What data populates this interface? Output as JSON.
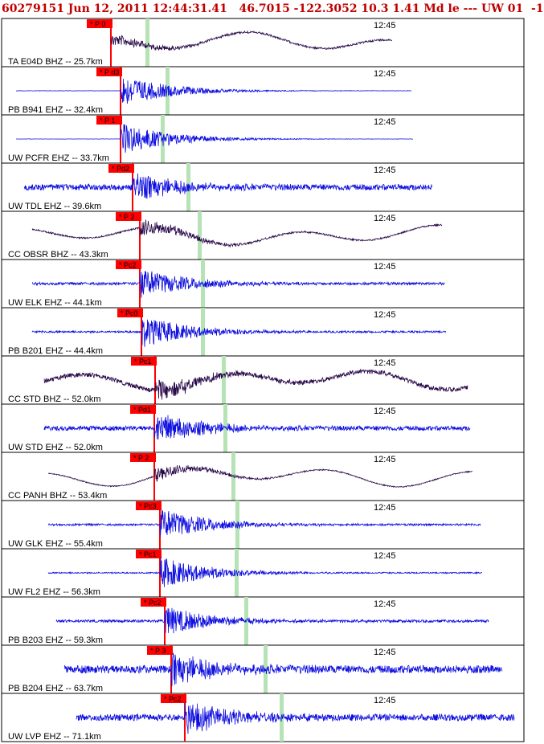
{
  "header": {
    "text": "60279151 Jun 12, 2011 12:44:31.41   46.7015 -122.3052 10.3 1.41 Md le --- UW 01  -1"
  },
  "colors": {
    "trace_blue": "#1010e0",
    "trace_purple": "#2a0a4a",
    "pick_red": "#ff0000",
    "phase_green": "#b6e3b6",
    "frame": "#000000"
  },
  "chart_data": {
    "type": "seismogram",
    "title": "60279151 Jun 12, 2011 12:44:31.41   46.7015 -122.3052 10.3 1.41 Md le --- UW 01  -1",
    "time_tick_label": "12:45",
    "series": [
      {
        "name": "TA E04D BHZ -- 25.7km",
        "pick": "P 0",
        "distance_km": 25.7,
        "color": "purple",
        "noise": 0.15,
        "event": 0.35,
        "long_period": true
      },
      {
        "name": "PB B941 EHZ -- 32.4km",
        "pick": "P d3",
        "distance_km": 32.4,
        "color": "blue",
        "noise": 0.03,
        "event": 0.9,
        "long_period": false
      },
      {
        "name": "UW PCFR EHZ -- 33.7km",
        "pick": "P 1",
        "distance_km": 33.7,
        "color": "blue",
        "noise": 0.02,
        "event": 0.95,
        "long_period": false
      },
      {
        "name": "UW TDL EHZ -- 39.6km",
        "pick": "Pd2",
        "distance_km": 39.6,
        "color": "blue",
        "noise": 0.45,
        "event": 0.8,
        "long_period": false
      },
      {
        "name": "CC OBSR BHZ -- 43.3km",
        "pick": "P 2",
        "distance_km": 43.3,
        "color": "purple",
        "noise": 0.12,
        "event": 0.5,
        "long_period": true
      },
      {
        "name": "UW ELK EHZ -- 44.1km",
        "pick": "Pc2",
        "distance_km": 44.1,
        "color": "blue",
        "noise": 0.2,
        "event": 0.85,
        "long_period": false
      },
      {
        "name": "PB B201 EHZ -- 44.4km",
        "pick": "Pc0",
        "distance_km": 44.4,
        "color": "blue",
        "noise": 0.15,
        "event": 0.9,
        "long_period": false
      },
      {
        "name": "CC STD BHZ -- 52.0km",
        "pick": "Pc1",
        "distance_km": 52.0,
        "color": "purple",
        "noise": 0.35,
        "event": 0.6,
        "long_period": true
      },
      {
        "name": "UW STD EHZ -- 52.0km",
        "pick": "Pd1",
        "distance_km": 52.0,
        "color": "blue",
        "noise": 0.35,
        "event": 0.9,
        "long_period": false
      },
      {
        "name": "CC PANH BHZ -- 53.4km",
        "pick": "P 2",
        "distance_km": 53.4,
        "color": "purple",
        "noise": 0.08,
        "event": 0.4,
        "long_period": true
      },
      {
        "name": "UW GLK EHZ -- 55.4km",
        "pick": "Pc3",
        "distance_km": 55.4,
        "color": "blue",
        "noise": 0.15,
        "event": 0.9,
        "long_period": false
      },
      {
        "name": "UW FL2 EHZ -- 56.3km",
        "pick": "Pc1",
        "distance_km": 56.3,
        "color": "blue",
        "noise": 0.1,
        "event": 0.9,
        "long_period": false
      },
      {
        "name": "PB B203 EHZ -- 59.3km",
        "pick": "Pc2",
        "distance_km": 59.3,
        "color": "blue",
        "noise": 0.2,
        "event": 0.85,
        "long_period": false
      },
      {
        "name": "PB B204 EHZ -- 63.7km",
        "pick": "P 3",
        "distance_km": 63.7,
        "color": "blue",
        "noise": 0.6,
        "event": 0.9,
        "long_period": false
      },
      {
        "name": "UW LVP EHZ -- 71.1km",
        "pick": "Pc2",
        "distance_km": 71.1,
        "color": "blue",
        "noise": 0.5,
        "event": 0.9,
        "long_period": false
      }
    ]
  }
}
